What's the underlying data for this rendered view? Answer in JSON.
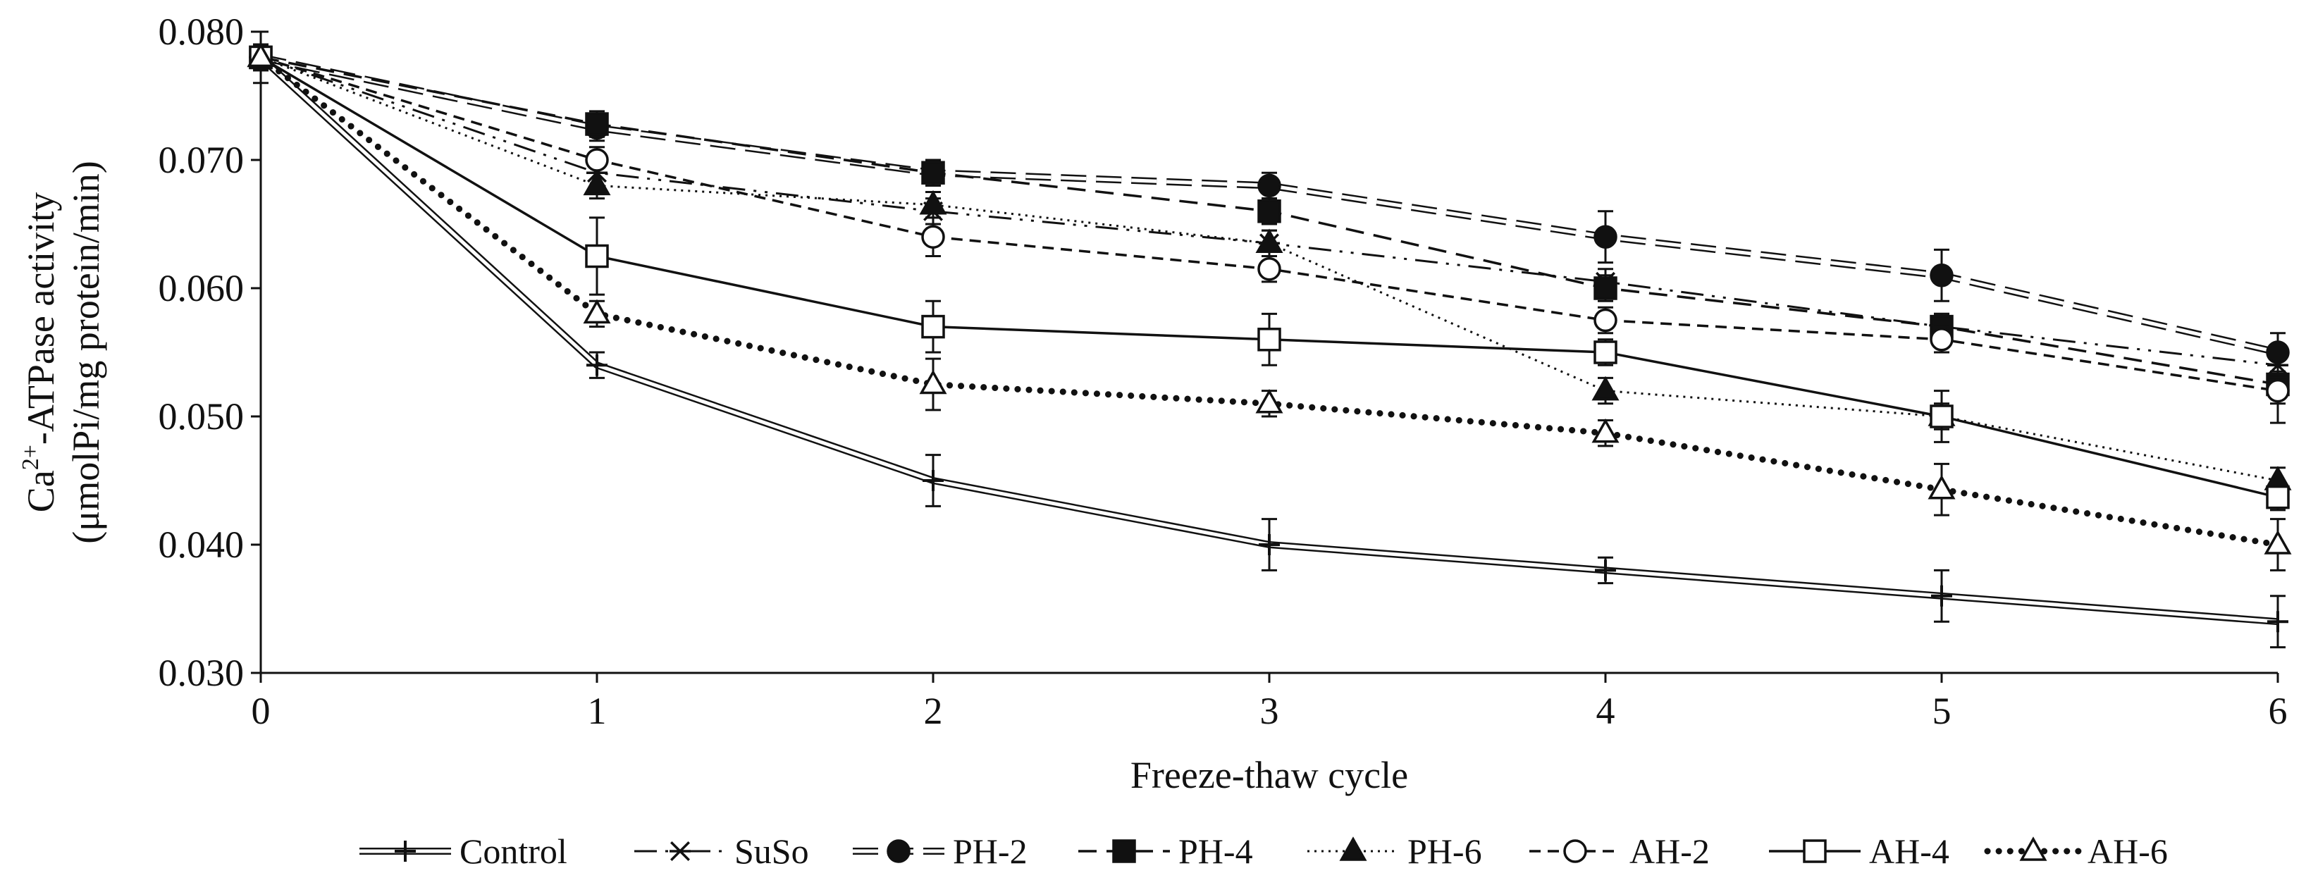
{
  "chart_data": {
    "type": "line",
    "title": "",
    "xlabel": "Freeze-thaw cycle",
    "ylabel_line1_prefix": "Ca",
    "ylabel_line1_sup": "2+",
    "ylabel_line1_suffix": "-ATPase activity",
    "ylabel_line2": "(μmolPi/mg protein/min)",
    "x": [
      0,
      1,
      2,
      3,
      4,
      5,
      6
    ],
    "x_tick_labels": [
      "0",
      "1",
      "2",
      "3",
      "4",
      "5",
      "6"
    ],
    "xlim": [
      0,
      6
    ],
    "ylim": [
      0.03,
      0.08
    ],
    "y_ticks": [
      0.03,
      0.04,
      0.05,
      0.06,
      0.07,
      0.08
    ],
    "y_tick_labels": [
      "0.030",
      "0.040",
      "0.050",
      "0.060",
      "0.070",
      "0.080"
    ],
    "legend_position": "bottom",
    "series": [
      {
        "name": "Control",
        "values": [
          0.078,
          0.054,
          0.045,
          0.04,
          0.038,
          0.036,
          0.034
        ],
        "errors": [
          0.002,
          0.001,
          0.002,
          0.002,
          0.001,
          0.002,
          0.002
        ],
        "line": "double",
        "marker": "plus"
      },
      {
        "name": "SuSo",
        "values": [
          0.078,
          0.069,
          0.066,
          0.0635,
          0.0605,
          0.057,
          0.054
        ],
        "errors": [
          0.001,
          0.001,
          0.001,
          0.001,
          0.001,
          0.001,
          0.001
        ],
        "line": "dashdotdot",
        "marker": "asterisk"
      },
      {
        "name": "PH-2",
        "values": [
          0.078,
          0.0725,
          0.069,
          0.068,
          0.064,
          0.061,
          0.055
        ],
        "errors": [
          0.001,
          0.001,
          0.001,
          0.001,
          0.002,
          0.002,
          0.0015
        ],
        "line": "double-dashed",
        "marker": "filled-circle"
      },
      {
        "name": "PH-4",
        "values": [
          0.078,
          0.0728,
          0.069,
          0.066,
          0.06,
          0.057,
          0.0525
        ],
        "errors": [
          0.001,
          0.001,
          0.001,
          0.001,
          0.001,
          0.001,
          0.003
        ],
        "line": "long-dash",
        "marker": "filled-square"
      },
      {
        "name": "PH-6",
        "values": [
          0.078,
          0.068,
          0.0665,
          0.0635,
          0.052,
          0.05,
          0.045
        ],
        "errors": [
          0.001,
          0.001,
          0.001,
          0.001,
          0.001,
          0.001,
          0.001
        ],
        "line": "dotted",
        "marker": "filled-triangle"
      },
      {
        "name": "AH-2",
        "values": [
          0.078,
          0.07,
          0.064,
          0.0615,
          0.0575,
          0.056,
          0.052
        ],
        "errors": [
          0.001,
          0.001,
          0.0015,
          0.001,
          0.001,
          0.001,
          0.001
        ],
        "line": "dashed",
        "marker": "open-circle"
      },
      {
        "name": "AH-4",
        "values": [
          0.078,
          0.0625,
          0.057,
          0.056,
          0.055,
          0.05,
          0.0437
        ],
        "errors": [
          0.001,
          0.003,
          0.002,
          0.002,
          0.001,
          0.002,
          0.001
        ],
        "line": "solid",
        "marker": "open-square"
      },
      {
        "name": "AH-6",
        "values": [
          0.078,
          0.058,
          0.0525,
          0.051,
          0.0487,
          0.0443,
          0.04
        ],
        "errors": [
          0.001,
          0.001,
          0.002,
          0.001,
          0.001,
          0.002,
          0.002
        ],
        "line": "heavy-dotted",
        "marker": "open-triangle"
      }
    ]
  }
}
